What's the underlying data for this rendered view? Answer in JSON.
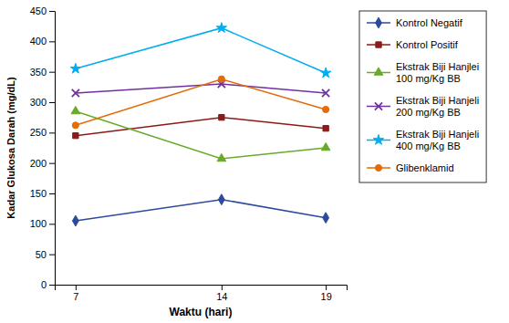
{
  "chart_data": {
    "type": "line",
    "x": [
      7,
      14,
      19
    ],
    "series": [
      {
        "name": "Kontrol Negatif",
        "color": "#2e4a9e",
        "marker": "diamond",
        "values": [
          105,
          140,
          110
        ]
      },
      {
        "name": "Kontrol Positif",
        "color": "#8b1a1a",
        "marker": "square",
        "values": [
          245,
          275,
          257
        ]
      },
      {
        "name": "Ekstrak Biji Hanjlei\n100 mg/Kg BB",
        "color": "#6aaa2a",
        "marker": "triangle",
        "values": [
          285,
          207,
          225
        ]
      },
      {
        "name": "Ekstrak Biji Hanjeli\n200 mg/Kg BB",
        "color": "#7030a0",
        "marker": "x",
        "values": [
          315,
          330,
          315
        ]
      },
      {
        "name": "Ekstrak Biji Hanjeli\n400 mg/Kg BB",
        "color": "#00aeef",
        "marker": "star",
        "values": [
          355,
          422,
          348
        ]
      },
      {
        "name": "Glibenklamid",
        "color": "#e36c09",
        "marker": "circle",
        "values": [
          262,
          338,
          288
        ]
      }
    ],
    "xlabel": "Waktu (hari)",
    "ylabel": "Kadar Glukosa Darah (mg/dL)",
    "xlim": [
      6,
      20
    ],
    "xticks": [
      7,
      14,
      19
    ],
    "ylim": [
      0,
      450
    ],
    "yticks": [
      0,
      50,
      100,
      150,
      200,
      250,
      300,
      350,
      400,
      450
    ],
    "grid": false,
    "legend": "right"
  }
}
